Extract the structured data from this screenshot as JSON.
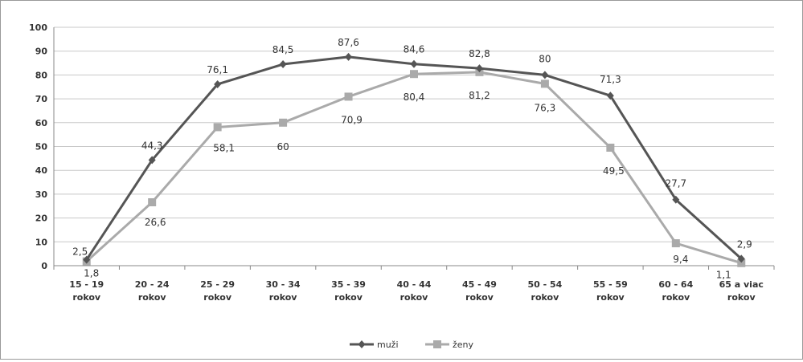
{
  "chart_data": {
    "type": "line",
    "categories": [
      "15 - 19 rokov",
      "20 - 24 rokov",
      "25 - 29 rokov",
      "30 - 34 rokov",
      "35 - 39 rokov",
      "40 - 44 rokov",
      "45 - 49 rokov",
      "50 - 54 rokov",
      "55 - 59 rokov",
      "60 - 64 rokov",
      "65 a viac rokov"
    ],
    "category_lines": [
      [
        "15 - 19",
        "rokov"
      ],
      [
        "20 - 24",
        "rokov"
      ],
      [
        "25 - 29",
        "rokov"
      ],
      [
        "30 - 34",
        "rokov"
      ],
      [
        "35 - 39",
        "rokov"
      ],
      [
        "40 - 44",
        "rokov"
      ],
      [
        "45 - 49",
        "rokov"
      ],
      [
        "50 - 54",
        "rokov"
      ],
      [
        "55 - 59",
        "rokov"
      ],
      [
        "60 - 64",
        "rokov"
      ],
      [
        "65 a viac",
        "rokov"
      ]
    ],
    "series": [
      {
        "name": "muži",
        "color": "#555555",
        "marker": "diamond",
        "values": [
          2.5,
          44.3,
          76.1,
          84.5,
          87.6,
          84.6,
          82.8,
          80,
          71.3,
          27.7,
          2.9
        ],
        "labels": [
          "2,5",
          "44,3",
          "76,1",
          "84,5",
          "87,6",
          "84,6",
          "82,8",
          "80",
          "71,3",
          "27,7",
          "2,9"
        ]
      },
      {
        "name": "ženy",
        "color": "#aaaaaa",
        "marker": "square",
        "values": [
          1.8,
          26.6,
          58.1,
          60,
          70.9,
          80.4,
          81.2,
          76.3,
          49.5,
          9.4,
          1.1
        ],
        "labels": [
          "1,8",
          "26,6",
          "58,1",
          "60",
          "70,9",
          "80,4",
          "81,2",
          "76,3",
          "49,5",
          "9,4",
          "1,1"
        ]
      }
    ],
    "ylim": [
      0,
      100
    ],
    "yticks": [
      0,
      10,
      20,
      30,
      40,
      50,
      60,
      70,
      80,
      90,
      100
    ],
    "grid": true,
    "legend": "bottom-center"
  }
}
